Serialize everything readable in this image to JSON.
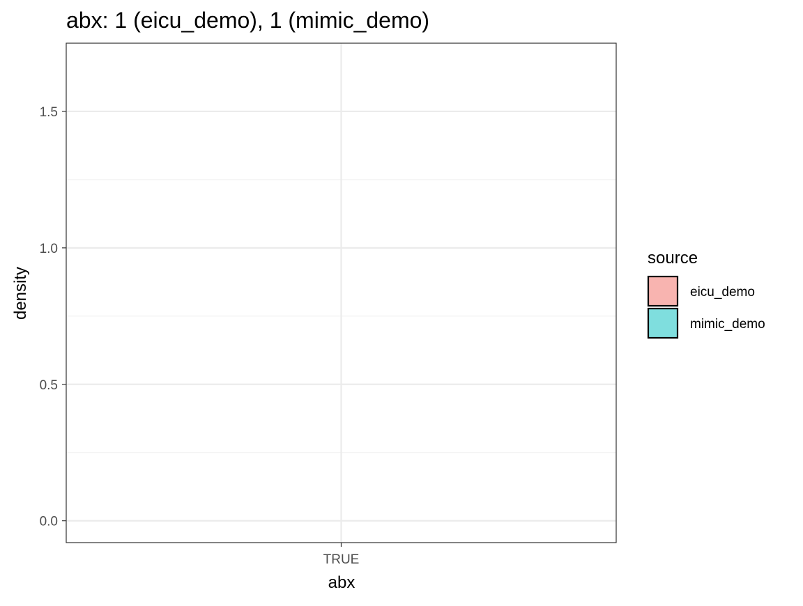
{
  "chart_data": {
    "type": "bar",
    "title": "abx: 1 (eicu_demo), 1 (mimic_demo)",
    "xlabel": "abx",
    "ylabel": "density",
    "categories": [
      "TRUE"
    ],
    "y_ticks": [
      "0.0",
      "0.5",
      "1.0",
      "1.5"
    ],
    "ylim": [
      -0.08,
      1.75
    ],
    "grid": true,
    "legend": {
      "title": "source",
      "placement": "right",
      "entries": [
        {
          "name": "eicu_demo",
          "color": "#F8B4B0"
        },
        {
          "name": "mimic_demo",
          "color": "#7FDEDE"
        }
      ]
    },
    "series": [
      {
        "name": "eicu_demo",
        "values": [
          0
        ]
      },
      {
        "name": "mimic_demo",
        "values": [
          0
        ]
      }
    ]
  }
}
